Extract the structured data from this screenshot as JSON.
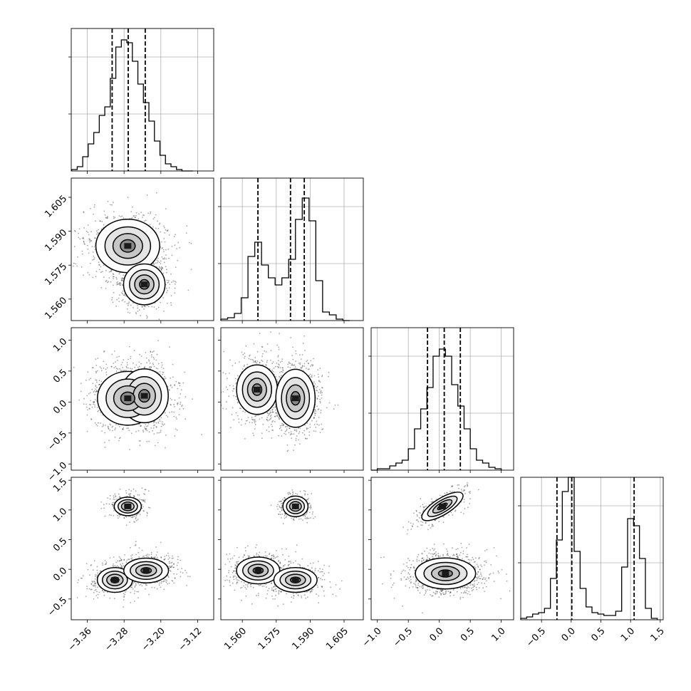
{
  "chart_data": {
    "type": "corner",
    "title": "",
    "grid": true,
    "colors": {
      "line": "#000000",
      "grid": "#b0b0b0",
      "background": "#ffffff",
      "scatter": "#000000"
    },
    "parameters": [
      {
        "xlim": [
          -3.395,
          -3.085
        ],
        "ticks": [
          -3.36,
          -3.28,
          -3.2,
          -3.12
        ],
        "tick_labels": [
          "−3.36",
          "−3.28",
          "−3.20",
          "−3.12"
        ]
      },
      {
        "xlim": [
          1.5505,
          1.6135
        ],
        "ticks": [
          1.56,
          1.575,
          1.59,
          1.605
        ],
        "tick_labels": [
          "1.560",
          "1.575",
          "1.590",
          "1.605"
        ]
      },
      {
        "xlim": [
          -1.1,
          1.2
        ],
        "ticks": [
          -1.0,
          -0.5,
          0.0,
          0.5,
          1.0
        ],
        "tick_labels": [
          "−1.0",
          "−0.5",
          "0.0",
          "0.5",
          "1.0"
        ]
      },
      {
        "xlim": [
          -0.85,
          1.55
        ],
        "ticks": [
          -0.5,
          0.0,
          0.5,
          1.0,
          1.5
        ],
        "tick_labels": [
          "−0.5",
          "0.0",
          "0.5",
          "1.0",
          "1.5"
        ]
      }
    ],
    "histograms": [
      {
        "param": 0,
        "bin_edges": [
          -3.394,
          -3.382,
          -3.37,
          -3.358,
          -3.346,
          -3.334,
          -3.322,
          -3.31,
          -3.298,
          -3.286,
          -3.274,
          -3.262,
          -3.25,
          -3.238,
          -3.226,
          -3.214,
          -3.202,
          -3.19,
          -3.178,
          -3.166,
          -3.154,
          -3.142,
          -3.13
        ],
        "heights": [
          0.01,
          0.03,
          0.1,
          0.19,
          0.27,
          0.39,
          0.45,
          0.65,
          0.87,
          0.92,
          0.9,
          0.77,
          0.61,
          0.48,
          0.35,
          0.21,
          0.11,
          0.05,
          0.03,
          0.01,
          0.0,
          0.0
        ],
        "quantiles": [
          -3.306,
          -3.271,
          -3.234
        ]
      },
      {
        "param": 1,
        "bin_edges": [
          1.5505,
          1.5535,
          1.5565,
          1.5595,
          1.5625,
          1.5655,
          1.5685,
          1.5715,
          1.5745,
          1.5775,
          1.5805,
          1.5835,
          1.5865,
          1.5895,
          1.5925,
          1.5955,
          1.5985,
          1.6015,
          1.6045,
          1.6075
        ],
        "heights": [
          0.01,
          0.02,
          0.05,
          0.16,
          0.45,
          0.55,
          0.39,
          0.3,
          0.25,
          0.3,
          0.43,
          0.71,
          0.86,
          0.7,
          0.28,
          0.06,
          0.04,
          0.01,
          0.0
        ],
        "quantiles": [
          1.5669,
          1.5813,
          1.5874
        ]
      },
      {
        "param": 2,
        "bin_edges": [
          -1.1,
          -1.0,
          -0.9,
          -0.8,
          -0.7,
          -0.6,
          -0.5,
          -0.4,
          -0.3,
          -0.2,
          -0.1,
          0.0,
          0.1,
          0.2,
          0.3,
          0.4,
          0.5,
          0.6,
          0.7,
          0.8,
          0.9,
          1.0
        ],
        "heights": [
          0.0,
          0.01,
          0.01,
          0.03,
          0.05,
          0.07,
          0.15,
          0.29,
          0.43,
          0.58,
          0.8,
          0.85,
          0.8,
          0.6,
          0.45,
          0.29,
          0.15,
          0.07,
          0.05,
          0.02,
          0.01
        ],
        "quantiles": [
          -0.19,
          0.08,
          0.34
        ]
      },
      {
        "param": 3,
        "bin_edges": [
          -0.85,
          -0.75,
          -0.65,
          -0.55,
          -0.45,
          -0.35,
          -0.25,
          -0.15,
          -0.05,
          0.05,
          0.15,
          0.25,
          0.35,
          0.45,
          0.55,
          0.65,
          0.75,
          0.85,
          0.95,
          1.05,
          1.15,
          1.25,
          1.35,
          1.45
        ],
        "heights": [
          0.01,
          0.02,
          0.04,
          0.05,
          0.08,
          0.29,
          0.56,
          0.9,
          1.0,
          0.48,
          0.22,
          0.09,
          0.05,
          0.04,
          0.03,
          0.03,
          0.06,
          0.37,
          0.71,
          0.66,
          0.43,
          0.08,
          0.01
        ],
        "quantiles": [
          -0.24,
          0.01,
          1.06
        ]
      }
    ],
    "pairs": [
      {
        "x": 0,
        "y": 1,
        "modes": [
          {
            "center": [
              -3.272,
              1.5835
            ],
            "rx": 0.04,
            "ry": 0.0068,
            "rot": 0,
            "weight": 0.6
          },
          {
            "center": [
              -3.236,
              1.5665
            ],
            "rx": 0.026,
            "ry": 0.0052,
            "rot": 0,
            "weight": 0.4
          }
        ]
      },
      {
        "x": 0,
        "y": 2,
        "modes": [
          {
            "center": [
              -3.272,
              0.06
            ],
            "rx": 0.038,
            "ry": 0.25,
            "rot": 0,
            "weight": 0.6
          },
          {
            "center": [
              -3.236,
              0.1
            ],
            "rx": 0.03,
            "ry": 0.25,
            "rot": 0,
            "weight": 0.4
          }
        ]
      },
      {
        "x": 1,
        "y": 2,
        "modes": [
          {
            "center": [
              1.5665,
              0.2
            ],
            "rx": 0.0052,
            "ry": 0.23,
            "rot": 0,
            "weight": 0.4
          },
          {
            "center": [
              1.5835,
              0.06
            ],
            "rx": 0.005,
            "ry": 0.27,
            "rot": 0,
            "weight": 0.6
          }
        ]
      },
      {
        "x": 0,
        "y": 3,
        "modes": [
          {
            "center": [
              -3.272,
              1.06
            ],
            "rx": 0.017,
            "ry": 0.09,
            "rot": 0,
            "weight": 0.25
          },
          {
            "center": [
              -3.3,
              -0.18
            ],
            "rx": 0.022,
            "ry": 0.12,
            "rot": 0,
            "weight": 0.35
          },
          {
            "center": [
              -3.232,
              -0.02
            ],
            "rx": 0.028,
            "ry": 0.12,
            "rot": 0,
            "weight": 0.4
          }
        ]
      },
      {
        "x": 1,
        "y": 3,
        "modes": [
          {
            "center": [
              1.5835,
              1.06
            ],
            "rx": 0.0032,
            "ry": 0.1,
            "rot": 0,
            "weight": 0.25
          },
          {
            "center": [
              1.567,
              -0.02
            ],
            "rx": 0.0055,
            "ry": 0.13,
            "rot": 0,
            "weight": 0.4
          },
          {
            "center": [
              1.5835,
              -0.18
            ],
            "rx": 0.0055,
            "ry": 0.12,
            "rot": 0,
            "weight": 0.35
          }
        ]
      },
      {
        "x": 2,
        "y": 3,
        "modes": [
          {
            "center": [
              0.05,
              1.06
            ],
            "rx": 0.22,
            "ry": 0.08,
            "rot": -0.55,
            "weight": 0.25
          },
          {
            "center": [
              0.1,
              -0.07
            ],
            "rx": 0.28,
            "ry": 0.15,
            "rot": 0,
            "weight": 0.75
          }
        ]
      }
    ]
  }
}
